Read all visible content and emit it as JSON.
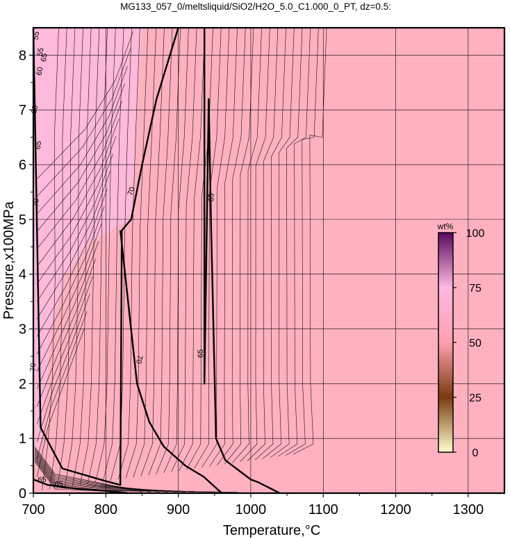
{
  "chart_data": {
    "type": "contour",
    "title": "MG133_057_0/meltsliquid/SiO2/H2O_5.0_C1.000_0_PT, dz=0.5:",
    "xlabel": "Temperature,°C",
    "ylabel": "Pressure,x100MPa",
    "xlim": [
      700,
      1350
    ],
    "ylim": [
      0,
      8.5
    ],
    "x_ticks": [
      700,
      800,
      900,
      1000,
      1100,
      1200,
      1300
    ],
    "y_ticks": [
      0,
      1,
      2,
      3,
      4,
      5,
      6,
      7,
      8
    ],
    "grid": true,
    "colors": {
      "field": "#FFB1C0",
      "field_low_t": "#FFB9D9",
      "line": "#000000"
    },
    "colorbar": {
      "label": "wt%",
      "min": 0,
      "max": 100,
      "ticks": [
        0,
        25,
        50,
        75,
        100
      ],
      "stops": [
        "#ffffd0",
        "#7a3a10",
        "#ff9fb0",
        "#ffb8e0",
        "#5a0a60"
      ]
    },
    "contour_labels": [
      "55",
      "55",
      "60",
      "60",
      "65",
      "65",
      "70",
      "70",
      "70",
      "70",
      "65",
      "65",
      "65",
      "65"
    ],
    "major_contours": [
      {
        "level": 70,
        "x": [
          700,
          710,
          740,
          800,
          820,
          822,
          835,
          850,
          870,
          900
        ],
        "y": [
          8.5,
          1.2,
          0.45,
          0.22,
          0.15,
          4.8,
          5.0,
          6.0,
          7.2,
          8.5
        ]
      },
      {
        "level": 70,
        "x": [
          820,
          843,
          860,
          880,
          910,
          935,
          960
        ],
        "y": [
          4.8,
          2.0,
          1.3,
          0.85,
          0.5,
          0.3,
          0.0
        ]
      },
      {
        "level": 65,
        "x": [
          936,
          936,
          942,
          945,
          952,
          965,
          985,
          1000,
          1010,
          1025,
          1040
        ],
        "y": [
          8.5,
          2.0,
          7.2,
          5.0,
          1.0,
          0.6,
          0.4,
          0.25,
          0.2,
          0.1,
          0.0
        ]
      },
      {
        "level": 65,
        "x": [
          700,
          720,
          760,
          800,
          830
        ],
        "y": [
          0.25,
          0.15,
          0.08,
          0.04,
          0.0
        ]
      }
    ]
  }
}
